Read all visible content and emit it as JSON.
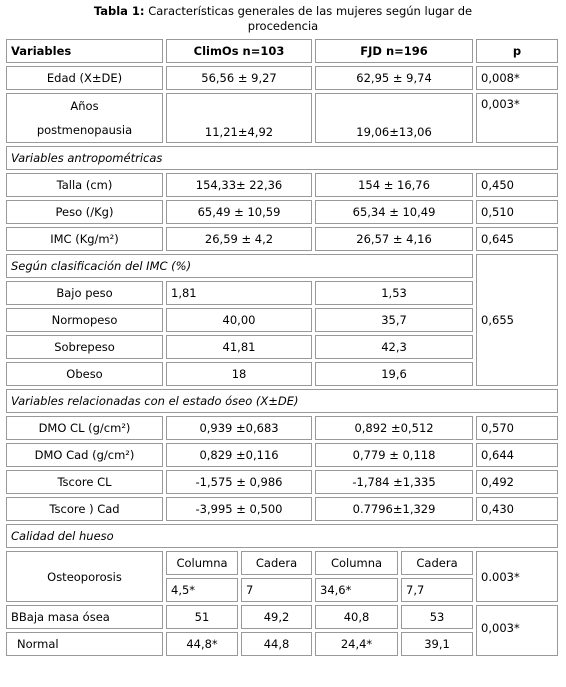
{
  "title": {
    "label": "Tabla 1:",
    "text": "Características generales de las mujeres según lugar de procedencia"
  },
  "table": {
    "header": [
      "Variables",
      "ClimOs n=103",
      "FJD n=196",
      "p"
    ],
    "general": [
      [
        "Edad (X±DE)",
        "56,56 ± 9,27",
        "62,95 ± 9,74",
        "0,008*"
      ],
      [
        "Años postmenopausia",
        "11,21±4,92",
        "19,06±13,06",
        "0,003*"
      ]
    ],
    "anthropometric": {
      "title": "Variables antropométricas",
      "rows": [
        [
          "Talla (cm)",
          "154,33± 22,36",
          "154 ± 16,76",
          "0,450"
        ],
        [
          "Peso (/Kg)",
          "65,49 ± 10,59",
          "65,34 ± 10,49",
          "0,510"
        ],
        [
          "IMC (Kg/m²)",
          "26,59 ± 4,2",
          "26,57 ± 4,16",
          "0,645"
        ]
      ]
    },
    "imc_class": {
      "title": "Según clasificación del IMC (%)",
      "p": "0,655",
      "rows": [
        [
          "Bajo peso",
          "1,81",
          "1,53"
        ],
        [
          "Normopeso",
          "40,00",
          "35,7"
        ],
        [
          "Sobrepeso",
          "41,81",
          "42,3"
        ],
        [
          "Obeso",
          "18",
          "19,6"
        ]
      ]
    },
    "bone": {
      "title": "Variables  relacionadas  con el estado óseo (X±DE)",
      "rows": [
        [
          "DMO CL (g/cm²)",
          "0,939 ±0,683",
          "0,892 ±0,512",
          "0,570"
        ],
        [
          "DMO Cad (g/cm²)",
          "0,829 ±0,116",
          "0,779 ± 0,118",
          "0,644"
        ],
        [
          "Tscore CL",
          "-1,575 ± 0,986",
          "-1,784 ±1,335",
          "0,492"
        ],
        [
          "Tscore  ) Cad",
          "-3,995 ± 0,500",
          "0.7796±1,329",
          "0,430"
        ]
      ]
    },
    "quality": {
      "title": "Calidad del hueso",
      "subheaders": [
        "Columna",
        "Cadera",
        "Columna",
        "Cadera"
      ],
      "rows": [
        [
          "Osteoporosis",
          "4,5*",
          "7",
          "34,6*",
          "7,7"
        ],
        [
          "BBaja masa ósea",
          "51",
          "49,2",
          "40,8",
          "53"
        ],
        [
          "Normal",
          "44,8*",
          "44,8",
          "24,4*",
          "39,1"
        ]
      ],
      "p": [
        "0.003*",
        "0,003*"
      ]
    }
  }
}
